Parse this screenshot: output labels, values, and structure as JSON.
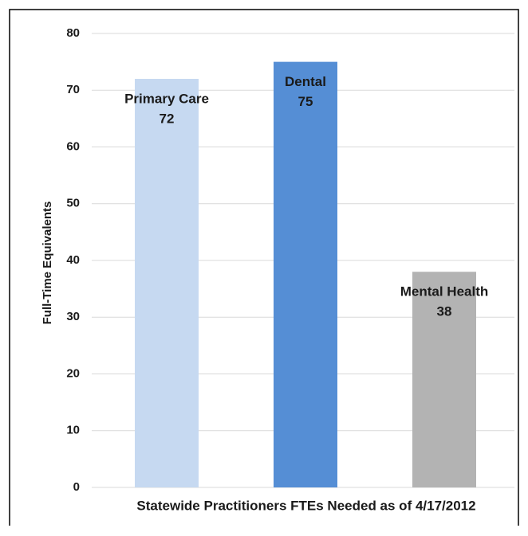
{
  "chart_data": {
    "type": "bar",
    "x_label": "Statewide Practitioners FTEs Needed as of 4/17/2012",
    "y_label": "Full-Time Equivalents",
    "categories": [
      "Primary Care",
      "Dental",
      "Mental Health"
    ],
    "values": [
      72,
      75,
      38
    ],
    "colors": [
      "#c6d9f1",
      "#558ed5",
      "#b3b3b3"
    ],
    "ylim": [
      0,
      80
    ],
    "yticks": [
      0,
      10,
      20,
      30,
      40,
      50,
      60,
      70,
      80
    ],
    "grid": true
  }
}
